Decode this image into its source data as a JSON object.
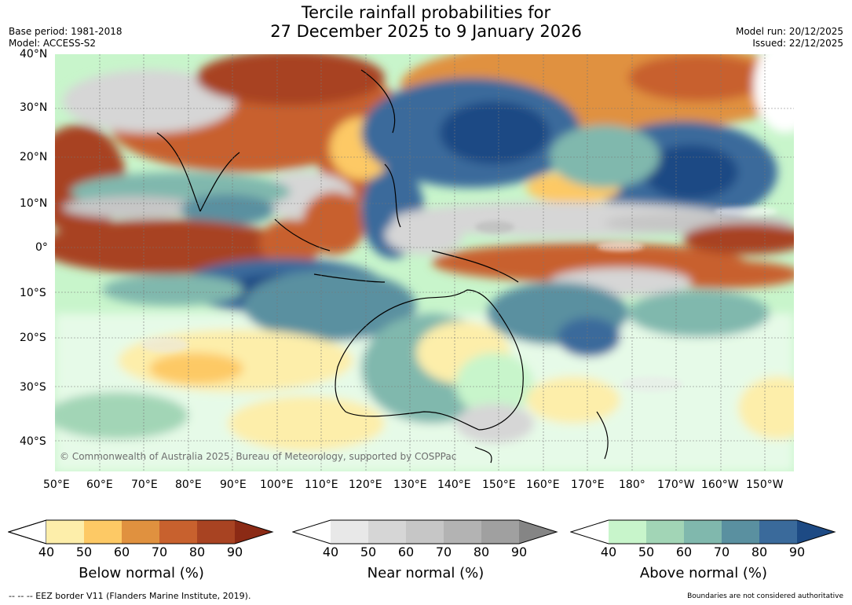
{
  "header": {
    "title_line1": "Tercile rainfall probabilities for",
    "title_line2": "27 December 2025 to 9 January 2026",
    "base_period": "Base period: 1981-2018",
    "model": "Model: ACCESS-S2",
    "model_run": "Model run: 20/12/2025",
    "issued": "Issued: 22/12/2025"
  },
  "map": {
    "lat_labels": [
      "40°N",
      "30°N",
      "20°N",
      "10°N",
      "0°",
      "10°S",
      "20°S",
      "30°S",
      "40°S"
    ],
    "lon_labels": [
      "50°E",
      "60°E",
      "70°E",
      "80°E",
      "90°E",
      "100°E",
      "110°E",
      "120°E",
      "130°E",
      "140°E",
      "150°E",
      "160°E",
      "170°E",
      "180°",
      "170°W",
      "160°W",
      "150°W"
    ],
    "copyright": "© Commonwealth of Australia 2025, Bureau of Meteorology, supported by COSPPac"
  },
  "legend": {
    "below": {
      "title": "Below normal (%)",
      "ticks": [
        "40",
        "50",
        "60",
        "70",
        "80",
        "90"
      ],
      "colors": [
        "#fdeeaa",
        "#fdc965",
        "#e0913f",
        "#c8612e",
        "#a84322",
        "#8b2a15"
      ]
    },
    "near": {
      "title": "Near normal (%)",
      "ticks": [
        "40",
        "50",
        "60",
        "70",
        "80",
        "90"
      ],
      "colors": [
        "#e8e8e8",
        "#d6d6d6",
        "#c6c6c6",
        "#b3b3b3",
        "#a0a0a0",
        "#858585"
      ]
    },
    "above": {
      "title": "Above normal (%)",
      "ticks": [
        "40",
        "50",
        "60",
        "70",
        "80",
        "90"
      ],
      "colors": [
        "#c8f5cb",
        "#a2d5b6",
        "#80b8ad",
        "#5a90a0",
        "#3a6a9b",
        "#1d4a84"
      ]
    }
  },
  "footer": {
    "eez_note": "--  --  -- EEZ border V11 (Flanders Marine Institute, 2019).",
    "boundaries_note": "Boundaries are not considered authoritative"
  }
}
